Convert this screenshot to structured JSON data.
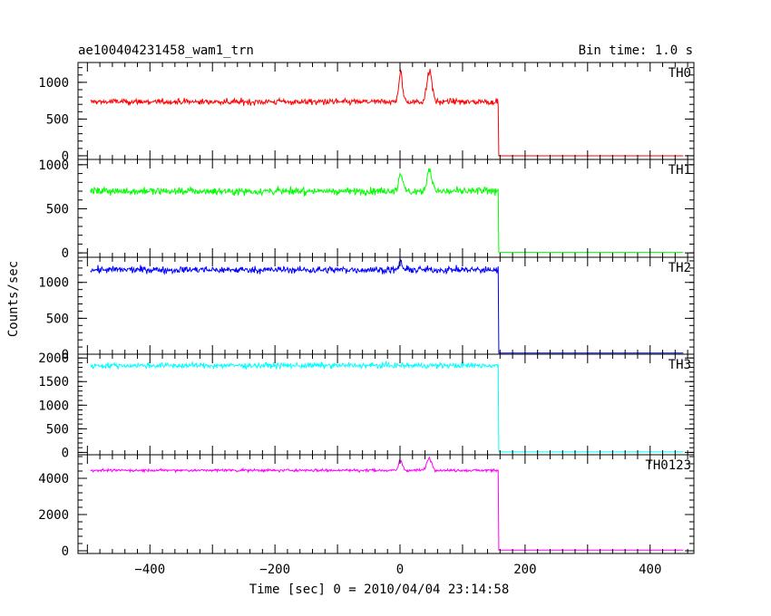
{
  "chart_data": {
    "type": "line",
    "title": "ae100404231458_wam1_trn",
    "bin_time_label": "Bin time: 1.0 s",
    "ylabel": "Counts/sec",
    "xlabel": "Time [sec] 0 = 2010/04/04 23:14:58",
    "xlim": [
      -515,
      470
    ],
    "x_ticks": [
      -400,
      -200,
      0,
      200,
      400
    ],
    "x_tick_labels": [
      "−400",
      "−200",
      "0",
      "200",
      "400"
    ],
    "data_range": [
      -495,
      453
    ],
    "drop_time": 157,
    "panels": [
      {
        "name": "TH0",
        "color": "#ff0000",
        "ylim": [
          -50,
          1270
        ],
        "y_ticks": [
          0,
          500,
          1000
        ],
        "baseline": 735,
        "noise": 40,
        "post_level": 0,
        "peaks": [
          {
            "t": 1,
            "height": 430,
            "width": 3
          },
          {
            "t": 47,
            "height": 470,
            "width": 4
          }
        ]
      },
      {
        "name": "TH1",
        "color": "#00ff00",
        "ylim": [
          -50,
          1060
        ],
        "y_ticks": [
          0,
          500,
          1000
        ],
        "baseline": 700,
        "noise": 40,
        "post_level": 5,
        "peaks": [
          {
            "t": 1,
            "height": 250,
            "width": 3
          },
          {
            "t": 47,
            "height": 290,
            "width": 4
          }
        ]
      },
      {
        "name": "TH2",
        "color": "#0000ff",
        "ylim": [
          0,
          1350
        ],
        "y_ticks": [
          0,
          500,
          1000
        ],
        "baseline": 1175,
        "noise": 45,
        "post_level": 15,
        "peaks": [
          {
            "t": 1,
            "height": 150,
            "width": 2
          }
        ]
      },
      {
        "name": "TH3",
        "color": "#00ffff",
        "ylim": [
          -50,
          2080
        ],
        "y_ticks": [
          0,
          500,
          1000,
          1500,
          2000
        ],
        "baseline": 1840,
        "noise": 55,
        "post_level": 10,
        "peaks": []
      },
      {
        "name": "TH0123",
        "color": "#ff00ff",
        "ylim": [
          -150,
          5300
        ],
        "y_ticks": [
          0,
          2000,
          4000
        ],
        "baseline": 4440,
        "noise": 70,
        "post_level": 40,
        "peaks": [
          {
            "t": 1,
            "height": 620,
            "width": 3
          },
          {
            "t": 47,
            "height": 750,
            "width": 4
          }
        ]
      }
    ]
  }
}
